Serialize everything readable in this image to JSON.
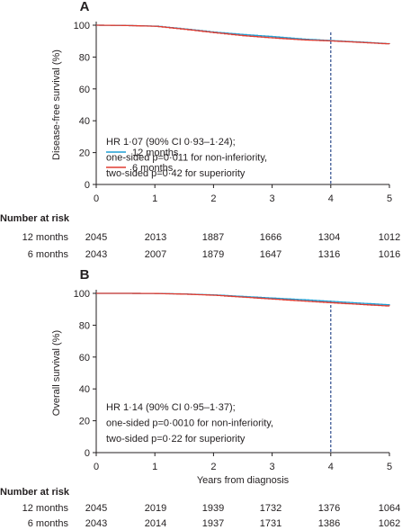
{
  "chart_data": [
    {
      "panel_label": "A",
      "type": "line",
      "title": "",
      "xlabel": "",
      "ylabel": "Disease-free survival (%)",
      "xlim": [
        0,
        5
      ],
      "ylim": [
        0,
        100
      ],
      "xticks": [
        0,
        1,
        2,
        3,
        4,
        5
      ],
      "yticks": [
        0,
        20,
        40,
        60,
        80,
        100
      ],
      "reference_line_x": 4,
      "annotation": [
        "HR 1·07 (90% CI 0·93–1·24);",
        "one-sided p=0·011 for non-inferiority,",
        "two-sided p=0·42 for superiority"
      ],
      "series": [
        {
          "name": "12 months",
          "color": "#1f9fd4",
          "x": [
            0,
            0.5,
            1.0,
            1.5,
            2.0,
            2.5,
            3.0,
            3.5,
            4.0,
            4.5,
            5.0
          ],
          "y": [
            100,
            99.8,
            99.4,
            97.6,
            95.6,
            94.1,
            92.8,
            91.3,
            90.3,
            89.4,
            88.3
          ]
        },
        {
          "name": "6 months",
          "color": "#e03c31",
          "x": [
            0,
            0.5,
            1.0,
            1.5,
            2.0,
            2.5,
            3.0,
            3.5,
            4.0,
            4.5,
            5.0
          ],
          "y": [
            100,
            99.8,
            99.3,
            97.4,
            95.3,
            93.4,
            92.0,
            90.8,
            90.1,
            89.2,
            88.2
          ]
        }
      ],
      "risk_table": {
        "header": "Number at risk",
        "rows": [
          {
            "label": "12 months",
            "values": [
              "2045",
              "2013",
              "1887",
              "1666",
              "1304",
              "1012"
            ]
          },
          {
            "label": "6 months",
            "values": [
              "2043",
              "2007",
              "1879",
              "1647",
              "1316",
              "1016"
            ]
          }
        ]
      }
    },
    {
      "panel_label": "B",
      "type": "line",
      "title": "",
      "xlabel": "Years from diagnosis",
      "ylabel": "Overall survival (%)",
      "xlim": [
        0,
        5
      ],
      "ylim": [
        0,
        100
      ],
      "xticks": [
        0,
        1,
        2,
        3,
        4,
        5
      ],
      "yticks": [
        0,
        20,
        40,
        60,
        80,
        100
      ],
      "reference_line_x": 4,
      "annotation": [
        "HR 1·14 (90% CI 0·95–1·37);",
        "one-sided p=0·0010 for non-inferiority,",
        "two-sided p=0·22 for superiority"
      ],
      "series": [
        {
          "name": "12 months",
          "color": "#1f9fd4",
          "x": [
            0,
            0.5,
            1.0,
            1.5,
            2.0,
            2.5,
            3.0,
            3.5,
            4.0,
            4.5,
            5.0
          ],
          "y": [
            100,
            100,
            99.9,
            99.6,
            99.0,
            98.0,
            97.0,
            96.0,
            94.9,
            93.8,
            92.7
          ]
        },
        {
          "name": "6 months",
          "color": "#e03c31",
          "x": [
            0,
            0.5,
            1.0,
            1.5,
            2.0,
            2.5,
            3.0,
            3.5,
            4.0,
            4.5,
            5.0
          ],
          "y": [
            100,
            100,
            99.9,
            99.5,
            98.8,
            97.6,
            96.4,
            95.2,
            94.1,
            93.0,
            92.0
          ]
        }
      ],
      "risk_table": {
        "header": "Number at risk",
        "rows": [
          {
            "label": "12 months",
            "values": [
              "2045",
              "2019",
              "1939",
              "1732",
              "1376",
              "1064"
            ]
          },
          {
            "label": "6 months",
            "values": [
              "2043",
              "2014",
              "1937",
              "1731",
              "1386",
              "1062"
            ]
          }
        ]
      }
    }
  ]
}
